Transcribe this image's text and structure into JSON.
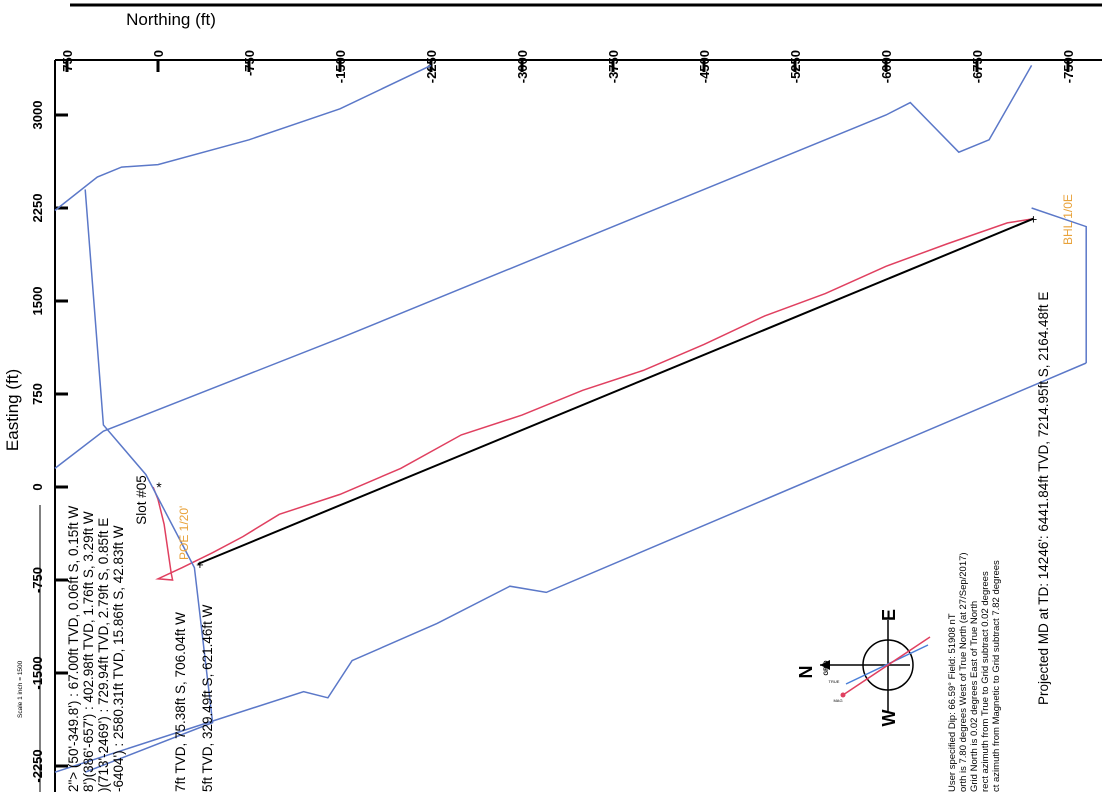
{
  "chart_data": {
    "type": "line",
    "title": "",
    "xlabel": "Northing (ft)",
    "ylabel": "Easting (ft)",
    "xlim": [
      850,
      -7650
    ],
    "ylim": [
      -2350,
      3400
    ],
    "x_ticks": [
      750,
      0,
      -750,
      -1500,
      -2250,
      -3000,
      -3750,
      -4500,
      -5250,
      -6000,
      -6750,
      -7500
    ],
    "y_ticks": [
      3000,
      2250,
      1500,
      750,
      0,
      -750,
      -1500,
      -2250
    ],
    "grid": false,
    "series": [
      {
        "color": "#e04060",
        "points": [
          [
            40,
            0
          ],
          [
            0,
            -100
          ],
          [
            -50,
            -300
          ],
          [
            -80,
            -500
          ],
          [
            -110,
            -700
          ],
          [
            -120,
            -750
          ],
          [
            0,
            -740
          ],
          [
            -200,
            -650
          ],
          [
            -450,
            -530
          ],
          [
            -700,
            -400
          ],
          [
            -1000,
            -220
          ],
          [
            -1500,
            -60
          ],
          [
            -2000,
            150
          ],
          [
            -2500,
            420
          ],
          [
            -3000,
            580
          ],
          [
            -3500,
            780
          ],
          [
            -4000,
            940
          ],
          [
            -4500,
            1150
          ],
          [
            -5000,
            1380
          ],
          [
            -5500,
            1560
          ],
          [
            -6000,
            1780
          ],
          [
            -6500,
            1960
          ],
          [
            -7000,
            2130
          ],
          [
            -7215,
            2164
          ]
        ]
      },
      {
        "color": "#000000",
        "points": [
          [
            -329,
            -621
          ],
          [
            -7215,
            2164
          ]
        ]
      },
      {
        "color": "#5b78c8",
        "points": [
          [
            850,
            2230
          ],
          [
            500,
            2500
          ],
          [
            300,
            2580
          ],
          [
            0,
            2600
          ],
          [
            -750,
            2800
          ],
          [
            -1500,
            3050
          ],
          [
            -2250,
            3400
          ]
        ]
      },
      {
        "color": "#5b78c8",
        "points": [
          [
            850,
            150
          ],
          [
            450,
            450
          ],
          [
            -1500,
            1200
          ],
          [
            -3000,
            1800
          ],
          [
            -4500,
            2400
          ],
          [
            -6000,
            3000
          ],
          [
            -6200,
            3100
          ],
          [
            -6600,
            2700
          ],
          [
            -6850,
            2800
          ],
          [
            -7200,
            3400
          ]
        ]
      },
      {
        "color": "#5b78c8",
        "points": [
          [
            600,
            2400
          ],
          [
            450,
            500
          ],
          [
            100,
            100
          ],
          [
            -300,
            -650
          ],
          [
            -450,
            -1900
          ],
          [
            600,
            -2300
          ]
        ]
      },
      {
        "color": "#5b78c8",
        "points": [
          [
            850,
            -2300
          ],
          [
            -1200,
            -1650
          ],
          [
            -1400,
            -1700
          ],
          [
            -1600,
            -1400
          ],
          [
            -2300,
            -1100
          ],
          [
            -2900,
            -800
          ],
          [
            -3200,
            -850
          ],
          [
            -7650,
            1000
          ]
        ]
      },
      {
        "color": "#5b78c8",
        "points": [
          [
            -7200,
            2250
          ],
          [
            -7650,
            2100
          ],
          [
            -7650,
            1000
          ]
        ]
      }
    ],
    "annotations": {
      "slot": "Slot #05",
      "poe": "POE 1/20'",
      "bhl": "BHL 1/0E",
      "projected": "Projected MD at TD: 14246': 6441.84ft TVD, 7214.95ft S, 2164.48ft E",
      "left_notes": [
        "2\"> (50'-349.8') : 67.00ft TVD, 0.06ft S, 0.15ft W",
        "8')(386'-657') : 402.98ft TVD, 1.76ft S, 3.29ft W",
        ")(713'-2469') : 729.94ft TVD, 2.79ft S, 0.85ft E",
        "-6404') : 2580.31ft TVD, 15.86ft S, 42.83ft W"
      ],
      "vert_note_1": "7ft TVD, 75.38ft S, 706.04ft W",
      "vert_note_2": "5ft TVD, 329.49ft S, 621.46ft W",
      "scale": "Scale 1 inch = 1500",
      "magnetic_notes": [
        "User specified Dip: 66.59°  Field: 51908 nT",
        "orth is 7.80 degrees West of True North (at 27/Sep/2017)",
        "Grid North is 0.02 degrees East of True North",
        "rect azimuth from True to Grid subtract 0.02 degrees",
        "ct azimuth from Magnetic to Grid subtract 7.82 degrees"
      ],
      "compass": {
        "n": "N",
        "e": "E",
        "w": "W",
        "grid": "GRID",
        "true": "TRUE",
        "mag": "MAG"
      }
    },
    "colors": {
      "lease": "#5b78c8",
      "actual": "#e04060",
      "plan": "#000000",
      "label": "#e8a23a"
    }
  }
}
